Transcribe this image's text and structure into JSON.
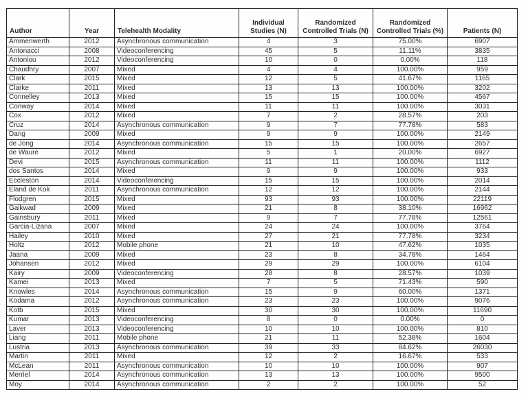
{
  "colors": {
    "background": "#ffffff",
    "table_border": "#232323",
    "text": "#2d2d2d"
  },
  "table": {
    "columns": [
      {
        "id": "author",
        "label": "Author",
        "align": "left"
      },
      {
        "id": "year",
        "label": "Year",
        "align": "center"
      },
      {
        "id": "telehealth-modality",
        "label": "Telehealth Modality",
        "align": "left"
      },
      {
        "id": "individual-studies-n",
        "label": "Individual Studies (N)",
        "align": "center"
      },
      {
        "id": "randomized-controlled-trials-n",
        "label": "Randomized Controlled Trials (N)",
        "align": "center"
      },
      {
        "id": "randomized-controlled-trials-pct",
        "label": "Randomized Controlled Trials (%)",
        "align": "center"
      },
      {
        "id": "patients-n",
        "label": "Patients (N)",
        "align": "center"
      }
    ],
    "rows": [
      [
        "Ammenwerth",
        "2012",
        "Asynchronous communication",
        "4",
        "3",
        "75.00%",
        "6907"
      ],
      [
        "Antonacci",
        "2008",
        "Videoconferencing",
        "45",
        "5",
        "11.11%",
        "3835"
      ],
      [
        "Antoniou",
        "2012",
        "Videoconferencing",
        "10",
        "0",
        "0.00%",
        "118"
      ],
      [
        "Chaudhry",
        "2007",
        "Mixed",
        "4",
        "4",
        "100.00%",
        "959"
      ],
      [
        "Clark",
        "2015",
        "Mixed",
        "12",
        "5",
        "41.67%",
        "1165"
      ],
      [
        "Clarke",
        "2011",
        "Mixed",
        "13",
        "13",
        "100.00%",
        "3202"
      ],
      [
        "Connelley",
        "2013",
        "Mixed",
        "15",
        "15",
        "100.00%",
        "4567"
      ],
      [
        "Conway",
        "2014",
        "Mixed",
        "11",
        "11",
        "100.00%",
        "3031"
      ],
      [
        "Cox",
        "2012",
        "Mixed",
        "7",
        "2",
        "28.57%",
        "203"
      ],
      [
        "Cruz",
        "2014",
        "Asynchronous communication",
        "9",
        "7",
        "77.78%",
        "583"
      ],
      [
        "Dang",
        "2009",
        "Mixed",
        "9",
        "9",
        "100.00%",
        "2149"
      ],
      [
        "de Jong",
        "2014",
        "Asynchronous communication",
        "15",
        "15",
        "100.00%",
        "2657"
      ],
      [
        "de Waure",
        "2012",
        "Mixed",
        "5",
        "1",
        "20.00%",
        "6927"
      ],
      [
        "Devi",
        "2015",
        "Asynchronous communication",
        "11",
        "11",
        "100.00%",
        "1112"
      ],
      [
        "dos Santos",
        "2014",
        "Mixed",
        "9",
        "9",
        "100.00%",
        "933"
      ],
      [
        "Eccleston",
        "2014",
        "Videoconferencing",
        "15",
        "15",
        "100.00%",
        "2014"
      ],
      [
        "Eland de Kok",
        "2011",
        "Asynchronous communication",
        "12",
        "12",
        "100.00%",
        "2144"
      ],
      [
        "Flodgren",
        "2015",
        "Mixed",
        "93",
        "93",
        "100.00%",
        "22119"
      ],
      [
        "Gaikwad",
        "2009",
        "Mixed",
        "21",
        "8",
        "38.10%",
        "16962"
      ],
      [
        "Gainsbury",
        "2011",
        "Mixed",
        "9",
        "7",
        "77.78%",
        "12561"
      ],
      [
        "Garcia-Lizana",
        "2007",
        "Mixed",
        "24",
        "24",
        "100.00%",
        "3764"
      ],
      [
        "Hailey",
        "2010",
        "Mixed",
        "27",
        "21",
        "77.78%",
        "3234"
      ],
      [
        "Holtz",
        "2012",
        "Mobile phone",
        "21",
        "10",
        "47.62%",
        "1035"
      ],
      [
        "Jaana",
        "2009",
        "Mixed",
        "23",
        "8",
        "34.78%",
        "1464"
      ],
      [
        "Johansen",
        "2012",
        "Mixed",
        "29",
        "29",
        "100.00%",
        "6104"
      ],
      [
        "Kairy",
        "2009",
        "Videoconferencing",
        "28",
        "8",
        "28.57%",
        "1039"
      ],
      [
        "Kamei",
        "2013",
        "Mixed",
        "7",
        "5",
        "71.43%",
        "590"
      ],
      [
        "Knowles",
        "2014",
        "Asynchronous communication",
        "15",
        "9",
        "60.00%",
        "1371"
      ],
      [
        "Kodama",
        "2012",
        "Asynchronous communication",
        "23",
        "23",
        "100.00%",
        "9076"
      ],
      [
        "Kotb",
        "2015",
        "Mixed",
        "30",
        "30",
        "100.00%",
        "11690"
      ],
      [
        "Kumar",
        "2013",
        "Videoconferencing",
        "8",
        "0",
        "0.00%",
        "0"
      ],
      [
        "Laver",
        "2013",
        "Videoconferencing",
        "10",
        "10",
        "100.00%",
        "810"
      ],
      [
        "Liang",
        "2011",
        "Mobile phone",
        "21",
        "11",
        "52.38%",
        "1604"
      ],
      [
        "Lustria",
        "2013",
        "Asynchronous communication",
        "39",
        "33",
        "84.62%",
        "26030"
      ],
      [
        "Martin",
        "2011",
        "Mixed",
        "12",
        "2",
        "16.67%",
        "533"
      ],
      [
        "McLean",
        "2011",
        "Asynchronous communication",
        "10",
        "10",
        "100.00%",
        "907"
      ],
      [
        "Merriel",
        "2014",
        "Asynchronous communication",
        "13",
        "13",
        "100.00%",
        "9500"
      ],
      [
        "Moy",
        "2014",
        "Asynchronous communication",
        "2",
        "2",
        "100.00%",
        "52"
      ]
    ]
  }
}
